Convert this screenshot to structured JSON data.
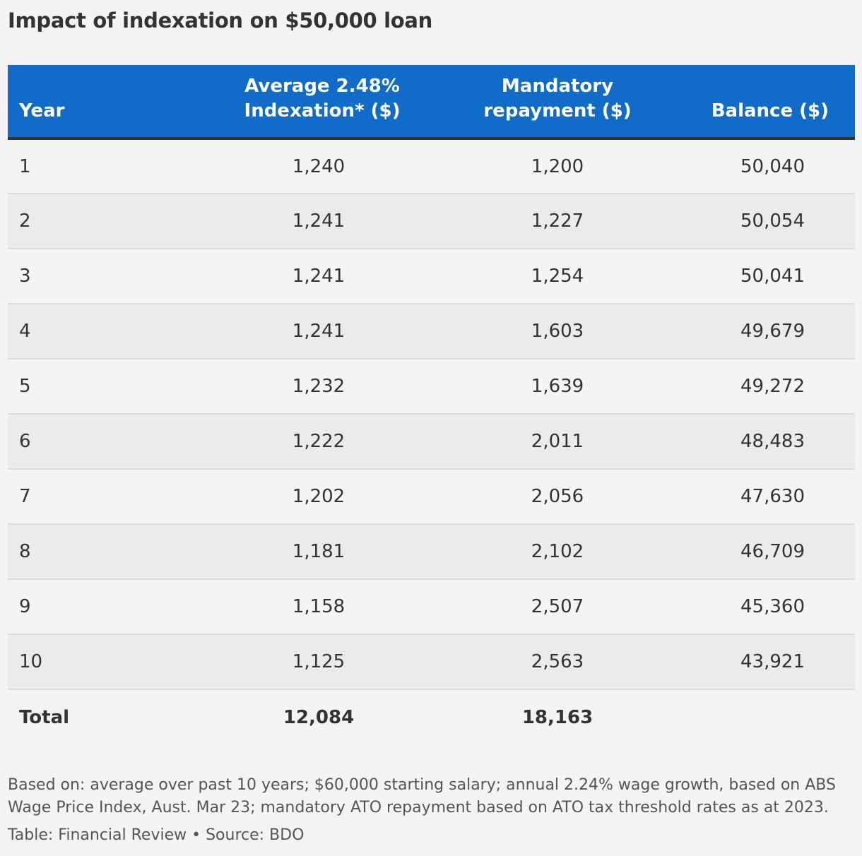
{
  "chart_data": {
    "type": "table",
    "title": "Impact of indexation on $50,000 loan",
    "columns": [
      "Year",
      "Average 2.48% Indexation* ($)",
      "Mandatory repayment ($)",
      "Balance ($)"
    ],
    "header": {
      "year": "Year",
      "indexation_line1": "Average 2.48%",
      "indexation_line2": "Indexation* ($)",
      "repayment_line1": "Mandatory",
      "repayment_line2": "repayment ($)",
      "balance": "Balance ($)"
    },
    "rows": [
      {
        "year": "1",
        "indexation": "1,240",
        "repayment": "1,200",
        "balance": "50,040"
      },
      {
        "year": "2",
        "indexation": "1,241",
        "repayment": "1,227",
        "balance": "50,054"
      },
      {
        "year": "3",
        "indexation": "1,241",
        "repayment": "1,254",
        "balance": "50,041"
      },
      {
        "year": "4",
        "indexation": "1,241",
        "repayment": "1,603",
        "balance": "49,679"
      },
      {
        "year": "5",
        "indexation": "1,232",
        "repayment": "1,639",
        "balance": "49,272"
      },
      {
        "year": "6",
        "indexation": "1,222",
        "repayment": "2,011",
        "balance": "48,483"
      },
      {
        "year": "7",
        "indexation": "1,202",
        "repayment": "2,056",
        "balance": "47,630"
      },
      {
        "year": "8",
        "indexation": "1,181",
        "repayment": "2,102",
        "balance": "46,709"
      },
      {
        "year": "9",
        "indexation": "1,158",
        "repayment": "2,507",
        "balance": "45,360"
      },
      {
        "year": "10",
        "indexation": "1,125",
        "repayment": "2,563",
        "balance": "43,921"
      }
    ],
    "total": {
      "label": "Total",
      "indexation": "12,084",
      "repayment": "18,163",
      "balance": ""
    },
    "note": "Based on: average over past 10 years; $60,000 starting salary; annual 2.24% wage growth, based on ABS Wage Price Index, Aust. Mar 23; mandatory ATO repayment based on ATO tax threshold rates as at 2023.",
    "credit": "Table: Financial Review • Source: BDO"
  },
  "colors": {
    "header_bg": "#106cc8",
    "header_text": "#ffffff",
    "row_alt": "#ebebeb",
    "page_bg": "#f4f4f4"
  }
}
